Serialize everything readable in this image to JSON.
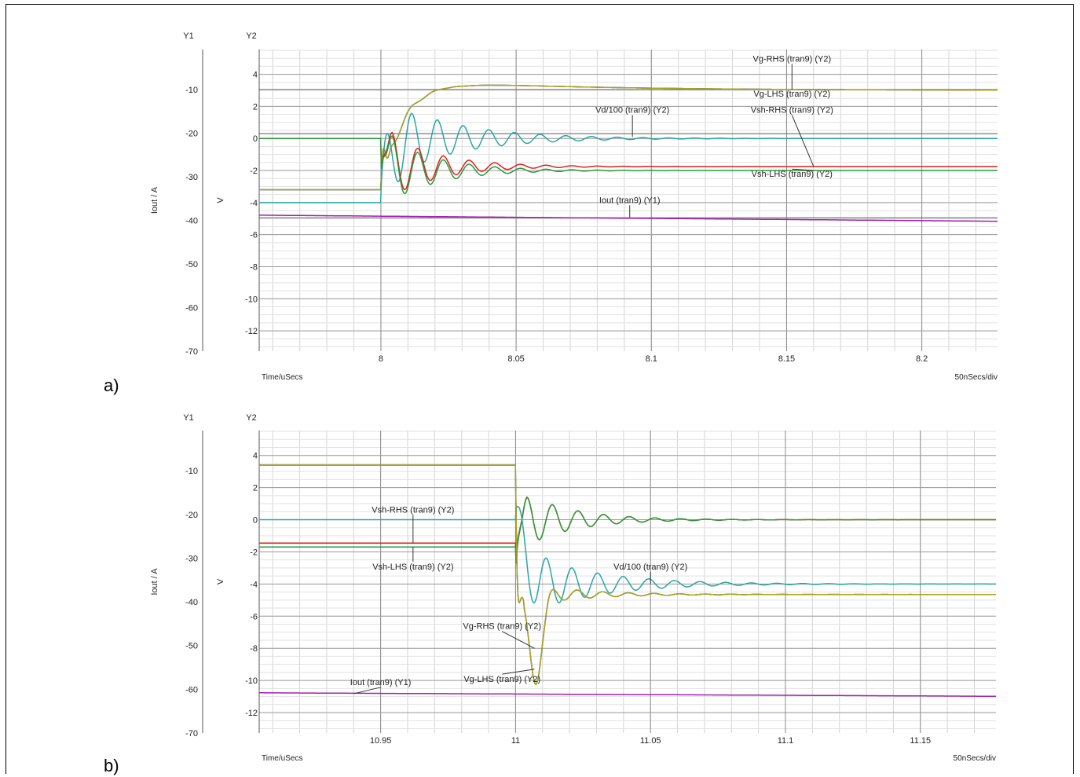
{
  "figure_labels": [
    "a)",
    "b)"
  ],
  "chart_data": [
    {
      "type": "line",
      "panel_label": "a)",
      "y1_header": "Y1",
      "y2_header": "Y2",
      "y1_label": "Iout / A",
      "y2_label": "V",
      "xlabel": "Time/uSecs",
      "x_scale_note": "50nSecs/div",
      "xlim": [
        7.955,
        8.228
      ],
      "x_ticks": [
        8,
        8.05,
        8.1,
        8.15,
        8.2
      ],
      "x_tick_labels": [
        "8",
        "8.05",
        "8.1",
        "8.15",
        "8.2"
      ],
      "y1_lim": [
        -70,
        -0.8
      ],
      "y1_ticks": [
        -10,
        -20,
        -30,
        -40,
        -50,
        -60,
        -70
      ],
      "y2_lim": [
        -13.27,
        5.55
      ],
      "y2_ticks": [
        4,
        2,
        0,
        -2,
        -4,
        -6,
        -8,
        -10,
        -12
      ],
      "hlines": [
        3.05,
        0.3,
        -4.95
      ],
      "series": [
        {
          "name": "Vg-RHS (tran9) (Y2)",
          "axis": "Y2",
          "color": "#1c2fa8",
          "kind": "vg",
          "pre": -3.2,
          "post": 3.0,
          "t0": 8.0,
          "sign": 1,
          "label": {
            "text": "Vg-RHS (tran9) (Y2)",
            "x": 8.152,
            "y": 4.8,
            "px": 8.152,
            "py": 3.05
          }
        },
        {
          "name": "Vg-LHS (tran9) (Y2)",
          "axis": "Y2",
          "color": "#a8a61c",
          "kind": "vg",
          "pre": -3.2,
          "post": 3.0,
          "t0": 8.0,
          "sign": 1,
          "label": {
            "text": "Vg-LHS (tran9) (Y2)",
            "x": 8.152,
            "y": 2.6,
            "px": 8.152,
            "py": 3.05
          }
        },
        {
          "name": "Vd/100 (tran9) (Y2)",
          "axis": "Y2",
          "color": "#2aa5a5",
          "kind": "vd",
          "pre": -4.0,
          "post": 0.0,
          "t0": 8.0,
          "sign": 1,
          "label": {
            "text": "Vd/100 (tran9) (Y2)",
            "x": 8.093,
            "y": 1.6,
            "px": 8.093,
            "py": 0.1
          }
        },
        {
          "name": "Vsh-RHS (tran9) (Y2)",
          "axis": "Y2",
          "color": "#e02020",
          "kind": "vsh",
          "pre": 0.0,
          "post": -1.75,
          "t0": 8.0,
          "sign": 1,
          "label": {
            "text": "Vsh-RHS (tran9) (Y2)",
            "x": 8.152,
            "y": 1.6,
            "px": 8.16,
            "py": -1.75
          }
        },
        {
          "name": "Vsh-LHS (tran9) (Y2)",
          "axis": "Y2",
          "color": "#2a9a3a",
          "kind": "vsh",
          "pre": 0.0,
          "post": -2.0,
          "t0": 8.0,
          "sign": 1,
          "label": {
            "text": "Vsh-LHS (tran9) (Y2)",
            "x": 8.152,
            "y": -2.4,
            "px": 8.16,
            "py": -2.0
          }
        },
        {
          "name": "Iout (tran9) (Y1)",
          "axis": "Y1",
          "color": "#a020b0",
          "kind": "iout",
          "start": -38.8,
          "end": -40.2,
          "label": {
            "text": "Iout (tran9) (Y1)",
            "x": 8.092,
            "y": -36.0,
            "px": 8.092,
            "py": -39.3
          }
        }
      ]
    },
    {
      "type": "line",
      "panel_label": "b)",
      "y1_header": "Y1",
      "y2_header": "Y2",
      "y1_label": "Iout / A",
      "y2_label": "V",
      "xlabel": "Time/uSecs",
      "x_scale_note": "50nSecs/div",
      "xlim": [
        10.905,
        11.178
      ],
      "x_ticks": [
        10.95,
        11,
        11.05,
        11.1,
        11.15
      ],
      "x_tick_labels": [
        "10.95",
        "11",
        "11.05",
        "11.1",
        "11.15"
      ],
      "y1_lim": [
        -70,
        -0.8
      ],
      "y1_ticks": [
        -10,
        -20,
        -30,
        -40,
        -50,
        -60,
        -70
      ],
      "y2_lim": [
        -13.27,
        5.55
      ],
      "y2_ticks": [
        4,
        2,
        0,
        -2,
        -4,
        -6,
        -8,
        -10,
        -12
      ],
      "hlines": [],
      "series": [
        {
          "name": "Vsh-RHS (tran9) (Y2)",
          "axis": "Y2",
          "color": "#e02020",
          "kind": "vsh",
          "pre": -1.45,
          "post": 0.0,
          "t0": 11.0,
          "sign": 1,
          "label": {
            "text": "Vsh-RHS (tran9) (Y2)",
            "x": 10.962,
            "y": 0.45,
            "px": 10.962,
            "py": -1.45
          }
        },
        {
          "name": "Vsh-LHS (tran9) (Y2)",
          "axis": "Y2",
          "color": "#2a9a3a",
          "kind": "vsh",
          "pre": -1.7,
          "post": 0.0,
          "t0": 11.0,
          "sign": 1,
          "label": {
            "text": "Vsh-LHS (tran9) (Y2)",
            "x": 10.962,
            "y": -3.1,
            "px": 10.962,
            "py": -1.7
          }
        },
        {
          "name": "Vd/100 (tran9) (Y2)",
          "axis": "Y2",
          "color": "#2aa5a5",
          "kind": "vd",
          "pre": 0.0,
          "post": -4.0,
          "t0": 11.0,
          "sign": 1,
          "label": {
            "text": "Vd/100 (tran9) (Y2)",
            "x": 11.05,
            "y": -3.1,
            "px": 11.05,
            "py": -4.0
          }
        },
        {
          "name": "Vg-RHS (tran9) (Y2)",
          "axis": "Y2",
          "color": "#1c2fa8",
          "kind": "vgdown",
          "pre": 3.4,
          "post": -4.65,
          "t0": 11.0,
          "sign": -1,
          "label": {
            "text": "Vg-RHS (tran9) (Y2)",
            "x": 10.995,
            "y": -6.8,
            "px": 11.007,
            "py": -8.0
          }
        },
        {
          "name": "Vg-LHS (tran9) (Y2)",
          "axis": "Y2",
          "color": "#a8a61c",
          "kind": "vgdown",
          "pre": 3.4,
          "post": -4.65,
          "t0": 11.0,
          "sign": -1,
          "label": {
            "text": "Vg-LHS (tran9) (Y2)",
            "x": 10.995,
            "y": -10.1,
            "px": 11.007,
            "py": -9.3
          }
        },
        {
          "name": "Iout (tran9) (Y1)",
          "axis": "Y1",
          "color": "#a020b0",
          "kind": "iout",
          "start": -60.8,
          "end": -61.6,
          "label": {
            "text": "Iout (tran9) (Y1)",
            "x": 10.95,
            "y": -59.0,
            "px": 10.94,
            "py": -61.0
          }
        }
      ]
    }
  ]
}
